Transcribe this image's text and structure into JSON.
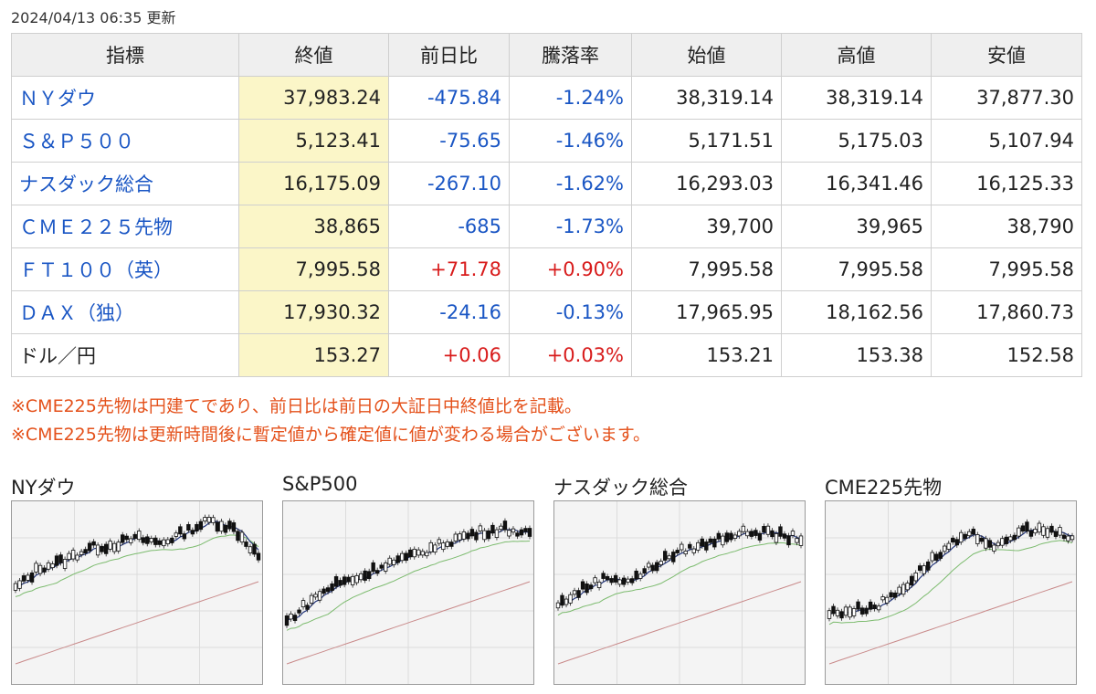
{
  "updated": "2024/04/13 06:35 更新",
  "table": {
    "headers": [
      "指標",
      "終値",
      "前日比",
      "騰落率",
      "始値",
      "高値",
      "安値"
    ],
    "rows": [
      {
        "name": "ＮＹダウ",
        "link": true,
        "close": "37,983.24",
        "change": "-475.84",
        "rate": "-1.24%",
        "open": "38,319.14",
        "high": "38,319.14",
        "low": "37,877.30",
        "dir": "neg"
      },
      {
        "name": "Ｓ＆Ｐ５００",
        "link": true,
        "close": "5,123.41",
        "change": "-75.65",
        "rate": "-1.46%",
        "open": "5,171.51",
        "high": "5,175.03",
        "low": "5,107.94",
        "dir": "neg"
      },
      {
        "name": "ナスダック総合",
        "link": true,
        "close": "16,175.09",
        "change": "-267.10",
        "rate": "-1.62%",
        "open": "16,293.03",
        "high": "16,341.46",
        "low": "16,125.33",
        "dir": "neg"
      },
      {
        "name": "ＣＭＥ２２５先物",
        "link": true,
        "close": "38,865",
        "change": "-685",
        "rate": "-1.73%",
        "open": "39,700",
        "high": "39,965",
        "low": "38,790",
        "dir": "neg"
      },
      {
        "name": "ＦＴ１００（英）",
        "link": true,
        "close": "7,995.58",
        "change": "+71.78",
        "rate": "+0.90%",
        "open": "7,995.58",
        "high": "7,995.58",
        "low": "7,995.58",
        "dir": "pos"
      },
      {
        "name": "ＤＡＸ（独）",
        "link": true,
        "close": "17,930.32",
        "change": "-24.16",
        "rate": "-0.13%",
        "open": "17,965.95",
        "high": "18,162.56",
        "low": "17,860.73",
        "dir": "neg"
      },
      {
        "name": "ドル／円",
        "link": false,
        "close": "153.27",
        "change": "+0.06",
        "rate": "+0.03%",
        "open": "153.21",
        "high": "153.38",
        "low": "152.58",
        "dir": "pos"
      }
    ]
  },
  "notes": [
    "※CME225先物は円建てであり、前日比は前日の大証日中終値比を記載。",
    "※CME225先物は更新時間後に暫定値から確定値に値が変わる場合がございます。"
  ],
  "charts": [
    {
      "title": "NYダウ"
    },
    {
      "title": "S&P500"
    },
    {
      "title": "ナスダック総合"
    },
    {
      "title": "CME225先物"
    }
  ],
  "colors": {
    "link": "#1a56c4",
    "up": "#d81b1b",
    "close_bg": "#fbf6c8",
    "note": "#e4511b"
  }
}
